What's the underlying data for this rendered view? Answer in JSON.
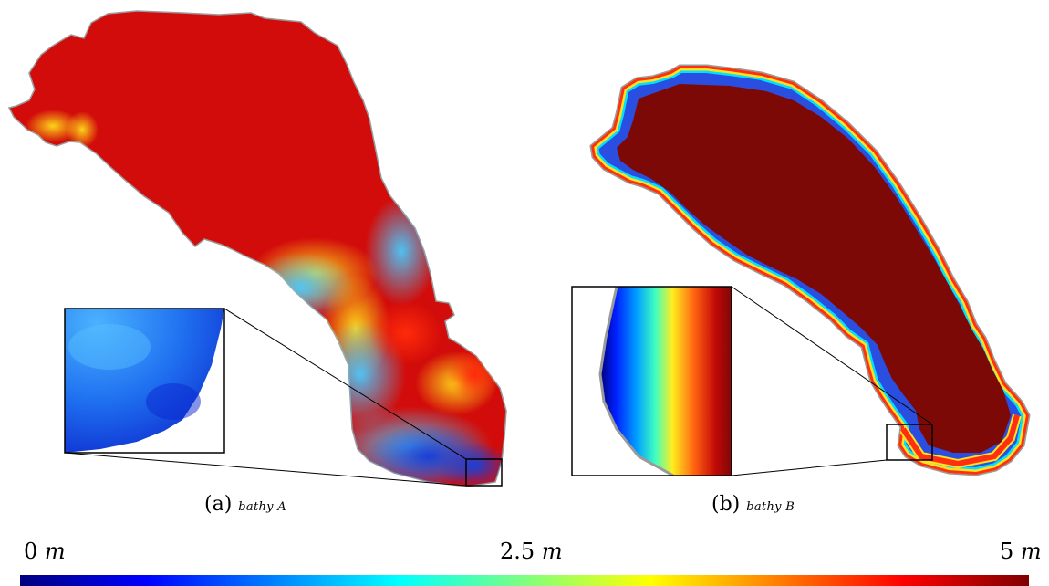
{
  "panels": [
    {
      "label": "(a)",
      "name": "bathy A"
    },
    {
      "label": "(b)",
      "name": "bathy B"
    }
  ],
  "colorbar": {
    "min_label": "0",
    "mid_label": "2.5",
    "max_label": "5",
    "unit": "m",
    "range": [
      0,
      5
    ],
    "colors": [
      "#00007f",
      "#0000ff",
      "#007fff",
      "#00ffff",
      "#7fff7f",
      "#ffff00",
      "#ff7f00",
      "#ff0000",
      "#7f0000"
    ]
  },
  "colors": {
    "shallow": "#1a3fd6",
    "mid": "#49c9ff",
    "deep_a": "#d20c0a",
    "deep_b": "#7d0906",
    "shore": "#9a9a9a"
  }
}
